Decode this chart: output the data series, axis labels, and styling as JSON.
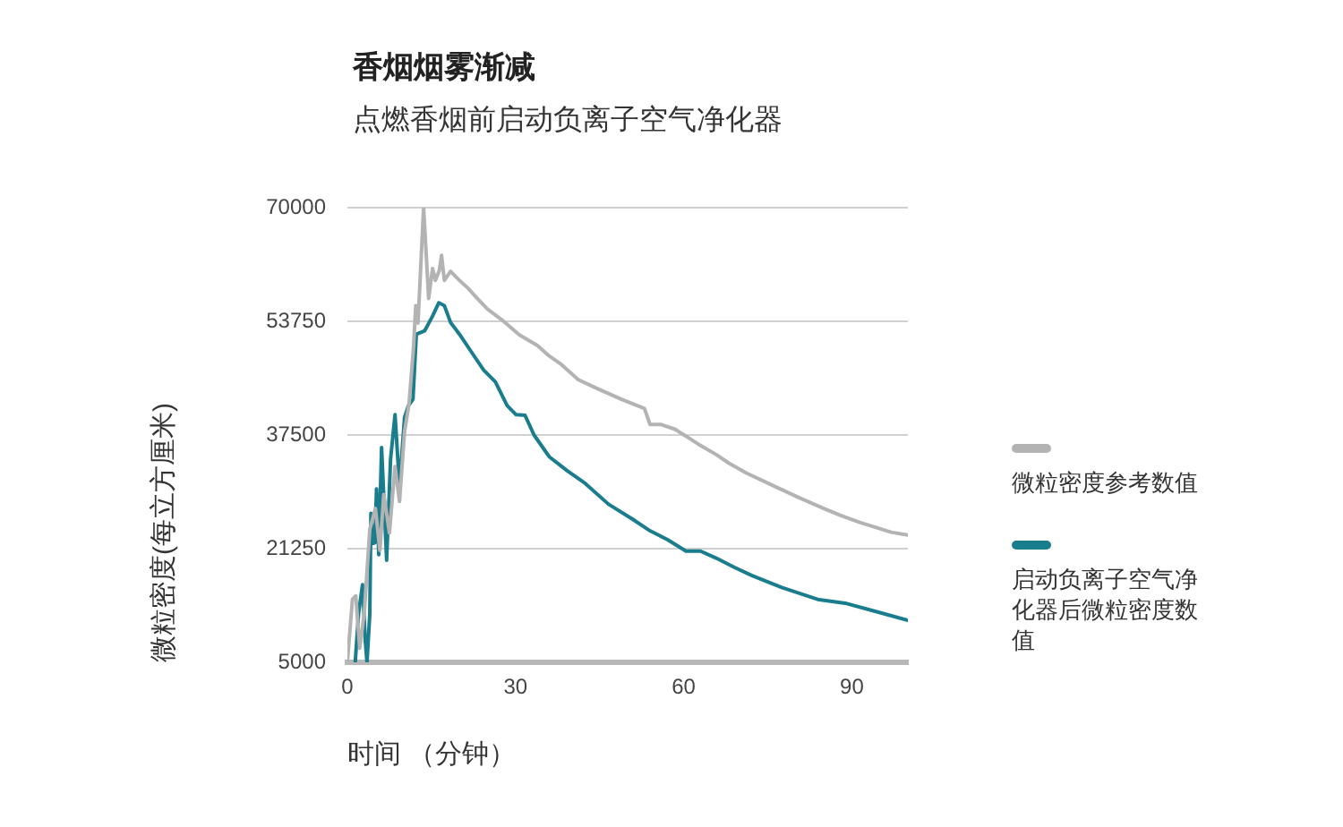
{
  "chart_data": {
    "type": "line",
    "title": "香烟烟雾渐减",
    "subtitle": "点燃香烟前启动负离子空气净化器",
    "xlabel": "时间 （分钟）",
    "ylabel": "微粒密度(每立方厘米)",
    "xlim": [
      0,
      100
    ],
    "xticks": [
      0,
      30,
      60,
      90
    ],
    "ylim": [
      5000,
      70000
    ],
    "yticks": [
      5000,
      21250,
      37500,
      53750,
      70000
    ],
    "grid": "y",
    "legend": "right",
    "series": [
      {
        "name": "微粒密度参考数值",
        "color": "#b3b3b3",
        "x": [
          0,
          0.9,
          1.5,
          2.2,
          3.0,
          4.0,
          5.0,
          5.8,
          6.5,
          7.5,
          8.5,
          9.3,
          10.2,
          11.0,
          11.8,
          12.2,
          12.6,
          13.6,
          14.5,
          15.2,
          15.7,
          16.4,
          16.8,
          17.3,
          18.4,
          20,
          21.5,
          23.2,
          25,
          27.5,
          30.7,
          33.9,
          36,
          38,
          41.2,
          44.4,
          48.9,
          53,
          54,
          56,
          58.5,
          62.6,
          65.8,
          68,
          71.1,
          76.4,
          80.7,
          85,
          88,
          91.4,
          94.6,
          97,
          100
        ],
        "values": [
          5000,
          14000,
          14500,
          7000,
          12000,
          24000,
          27000,
          21000,
          29000,
          23500,
          33000,
          28000,
          38000,
          42000,
          50000,
          56000,
          53500,
          70000,
          57000,
          61300,
          59600,
          61000,
          63200,
          59600,
          60900,
          59600,
          58500,
          57000,
          55500,
          54000,
          51800,
          50300,
          48800,
          47700,
          45400,
          44200,
          42600,
          41300,
          39000,
          39000,
          38300,
          36200,
          34700,
          33500,
          32100,
          30100,
          28500,
          27000,
          26000,
          25000,
          24200,
          23600,
          23200
        ]
      },
      {
        "name": "启动负离子空气净化器后微粒密度数值",
        "color": "#1a7d8e",
        "x": [
          1.4,
          2.0,
          2.7,
          3.2,
          3.5,
          4.0,
          4.2,
          4.6,
          4.9,
          5.2,
          5.6,
          6.1,
          7.0,
          7.7,
          8.5,
          9.3,
          10.2,
          10.9,
          11.7,
          12.3,
          13.8,
          15.2,
          16.3,
          17.3,
          18.4,
          20,
          22.1,
          24.3,
          26.4,
          28.5,
          30.1,
          31.7,
          33.3,
          36,
          39.2,
          42.4,
          46.6,
          50.8,
          54,
          57.2,
          60.4,
          63,
          65.8,
          69,
          72.2,
          77.5,
          83.9,
          89.1,
          94.6,
          100
        ],
        "values": [
          5000,
          12000,
          16100,
          8000,
          5000,
          12000,
          26300,
          22000,
          22100,
          29800,
          20400,
          35700,
          19600,
          34000,
          40400,
          30200,
          40000,
          41700,
          42600,
          51900,
          52400,
          54500,
          56400,
          56000,
          53600,
          51900,
          49400,
          46800,
          45100,
          41700,
          40400,
          40300,
          37500,
          34400,
          32400,
          30600,
          27600,
          25500,
          23800,
          22500,
          20900,
          20900,
          19900,
          18600,
          17400,
          15700,
          14000,
          13400,
          12200,
          11000
        ]
      }
    ]
  }
}
